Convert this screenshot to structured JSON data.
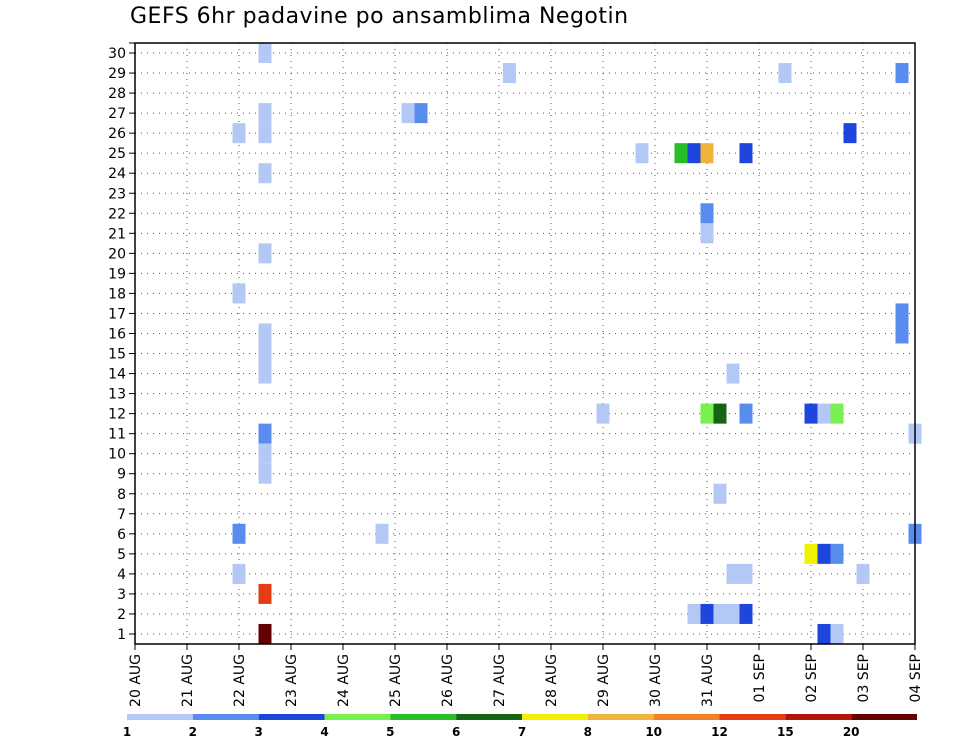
{
  "chart_data": {
    "type": "heatmap",
    "title": "GEFS 6hr padavine po ansamblima Negotin",
    "xlabel": "",
    "ylabel": "",
    "x_tick_labels": [
      "20 AUG",
      "21 AUG",
      "22 AUG",
      "23 AUG",
      "24 AUG",
      "25 AUG",
      "26 AUG",
      "27 AUG",
      "28 AUG",
      "29 AUG",
      "30 AUG",
      "31 AUG",
      "01 SEP",
      "02 SEP",
      "03 SEP",
      "04 SEP"
    ],
    "y_tick_labels": [
      "1",
      "2",
      "3",
      "4",
      "5",
      "6",
      "7",
      "8",
      "9",
      "10",
      "11",
      "12",
      "13",
      "14",
      "15",
      "16",
      "17",
      "18",
      "19",
      "20",
      "21",
      "22",
      "23",
      "24",
      "25",
      "26",
      "27",
      "28",
      "29",
      "30"
    ],
    "x_range_days": [
      0,
      15
    ],
    "y_range": [
      0,
      30
    ],
    "grid": true,
    "legend": {
      "placement": "bottom",
      "labels": [
        "1",
        "2",
        "3",
        "4",
        "5",
        "6",
        "7",
        "8",
        "10",
        "12",
        "15",
        "20"
      ],
      "colors": [
        "#b4c8f5",
        "#5a8cf0",
        "#1e46dc",
        "#78f050",
        "#28be28",
        "#146414",
        "#f0f000",
        "#f0b43c",
        "#f08228",
        "#e63c14",
        "#b4140a",
        "#640000"
      ]
    },
    "cells": [
      {
        "member": 30,
        "day": 2.5,
        "cat": 0
      },
      {
        "member": 29,
        "day": 7.2,
        "cat": 0
      },
      {
        "member": 29,
        "day": 12.5,
        "cat": 0
      },
      {
        "member": 29,
        "day": 14.75,
        "cat": 1
      },
      {
        "member": 27,
        "day": 2.5,
        "cat": 0
      },
      {
        "member": 27,
        "day": 5.25,
        "cat": 0
      },
      {
        "member": 27,
        "day": 5.5,
        "cat": 1
      },
      {
        "member": 26,
        "day": 2.0,
        "cat": 0
      },
      {
        "member": 26,
        "day": 2.5,
        "cat": 0
      },
      {
        "member": 26,
        "day": 13.75,
        "cat": 2
      },
      {
        "member": 25,
        "day": 9.75,
        "cat": 0
      },
      {
        "member": 25,
        "day": 10.5,
        "cat": 4
      },
      {
        "member": 25,
        "day": 10.75,
        "cat": 2
      },
      {
        "member": 25,
        "day": 11.0,
        "cat": 7
      },
      {
        "member": 25,
        "day": 11.75,
        "cat": 2
      },
      {
        "member": 24,
        "day": 2.5,
        "cat": 0
      },
      {
        "member": 22,
        "day": 11.0,
        "cat": 1
      },
      {
        "member": 21,
        "day": 11.0,
        "cat": 0
      },
      {
        "member": 20,
        "day": 2.5,
        "cat": 0
      },
      {
        "member": 18,
        "day": 2.0,
        "cat": 0
      },
      {
        "member": 17,
        "day": 14.75,
        "cat": 1
      },
      {
        "member": 16,
        "day": 2.5,
        "cat": 0
      },
      {
        "member": 16,
        "day": 14.75,
        "cat": 1
      },
      {
        "member": 15,
        "day": 2.5,
        "cat": 0
      },
      {
        "member": 14,
        "day": 2.5,
        "cat": 0
      },
      {
        "member": 14,
        "day": 11.5,
        "cat": 0
      },
      {
        "member": 12,
        "day": 9.0,
        "cat": 0
      },
      {
        "member": 12,
        "day": 11.0,
        "cat": 3
      },
      {
        "member": 12,
        "day": 11.25,
        "cat": 5
      },
      {
        "member": 12,
        "day": 11.75,
        "cat": 1
      },
      {
        "member": 12,
        "day": 13.0,
        "cat": 2
      },
      {
        "member": 12,
        "day": 13.25,
        "cat": 0
      },
      {
        "member": 12,
        "day": 13.5,
        "cat": 3
      },
      {
        "member": 11,
        "day": 2.5,
        "cat": 1
      },
      {
        "member": 11,
        "day": 15.0,
        "cat": 0
      },
      {
        "member": 10,
        "day": 2.5,
        "cat": 0
      },
      {
        "member": 9,
        "day": 2.5,
        "cat": 0
      },
      {
        "member": 8,
        "day": 11.25,
        "cat": 0
      },
      {
        "member": 6,
        "day": 2.0,
        "cat": 1
      },
      {
        "member": 6,
        "day": 4.75,
        "cat": 0
      },
      {
        "member": 6,
        "day": 15.0,
        "cat": 1
      },
      {
        "member": 5,
        "day": 13.0,
        "cat": 6
      },
      {
        "member": 5,
        "day": 13.25,
        "cat": 2
      },
      {
        "member": 5,
        "day": 13.5,
        "cat": 1
      },
      {
        "member": 4,
        "day": 2.0,
        "cat": 0
      },
      {
        "member": 4,
        "day": 11.5,
        "cat": 0
      },
      {
        "member": 4,
        "day": 11.75,
        "cat": 0
      },
      {
        "member": 4,
        "day": 14.0,
        "cat": 0
      },
      {
        "member": 3,
        "day": 2.5,
        "cat": 9
      },
      {
        "member": 2,
        "day": 10.75,
        "cat": 0
      },
      {
        "member": 2,
        "day": 11.0,
        "cat": 2
      },
      {
        "member": 2,
        "day": 11.25,
        "cat": 0
      },
      {
        "member": 2,
        "day": 11.5,
        "cat": 0
      },
      {
        "member": 2,
        "day": 11.75,
        "cat": 2
      },
      {
        "member": 1,
        "day": 2.5,
        "cat": 11
      },
      {
        "member": 1,
        "day": 13.25,
        "cat": 2
      },
      {
        "member": 1,
        "day": 13.5,
        "cat": 0
      }
    ]
  }
}
